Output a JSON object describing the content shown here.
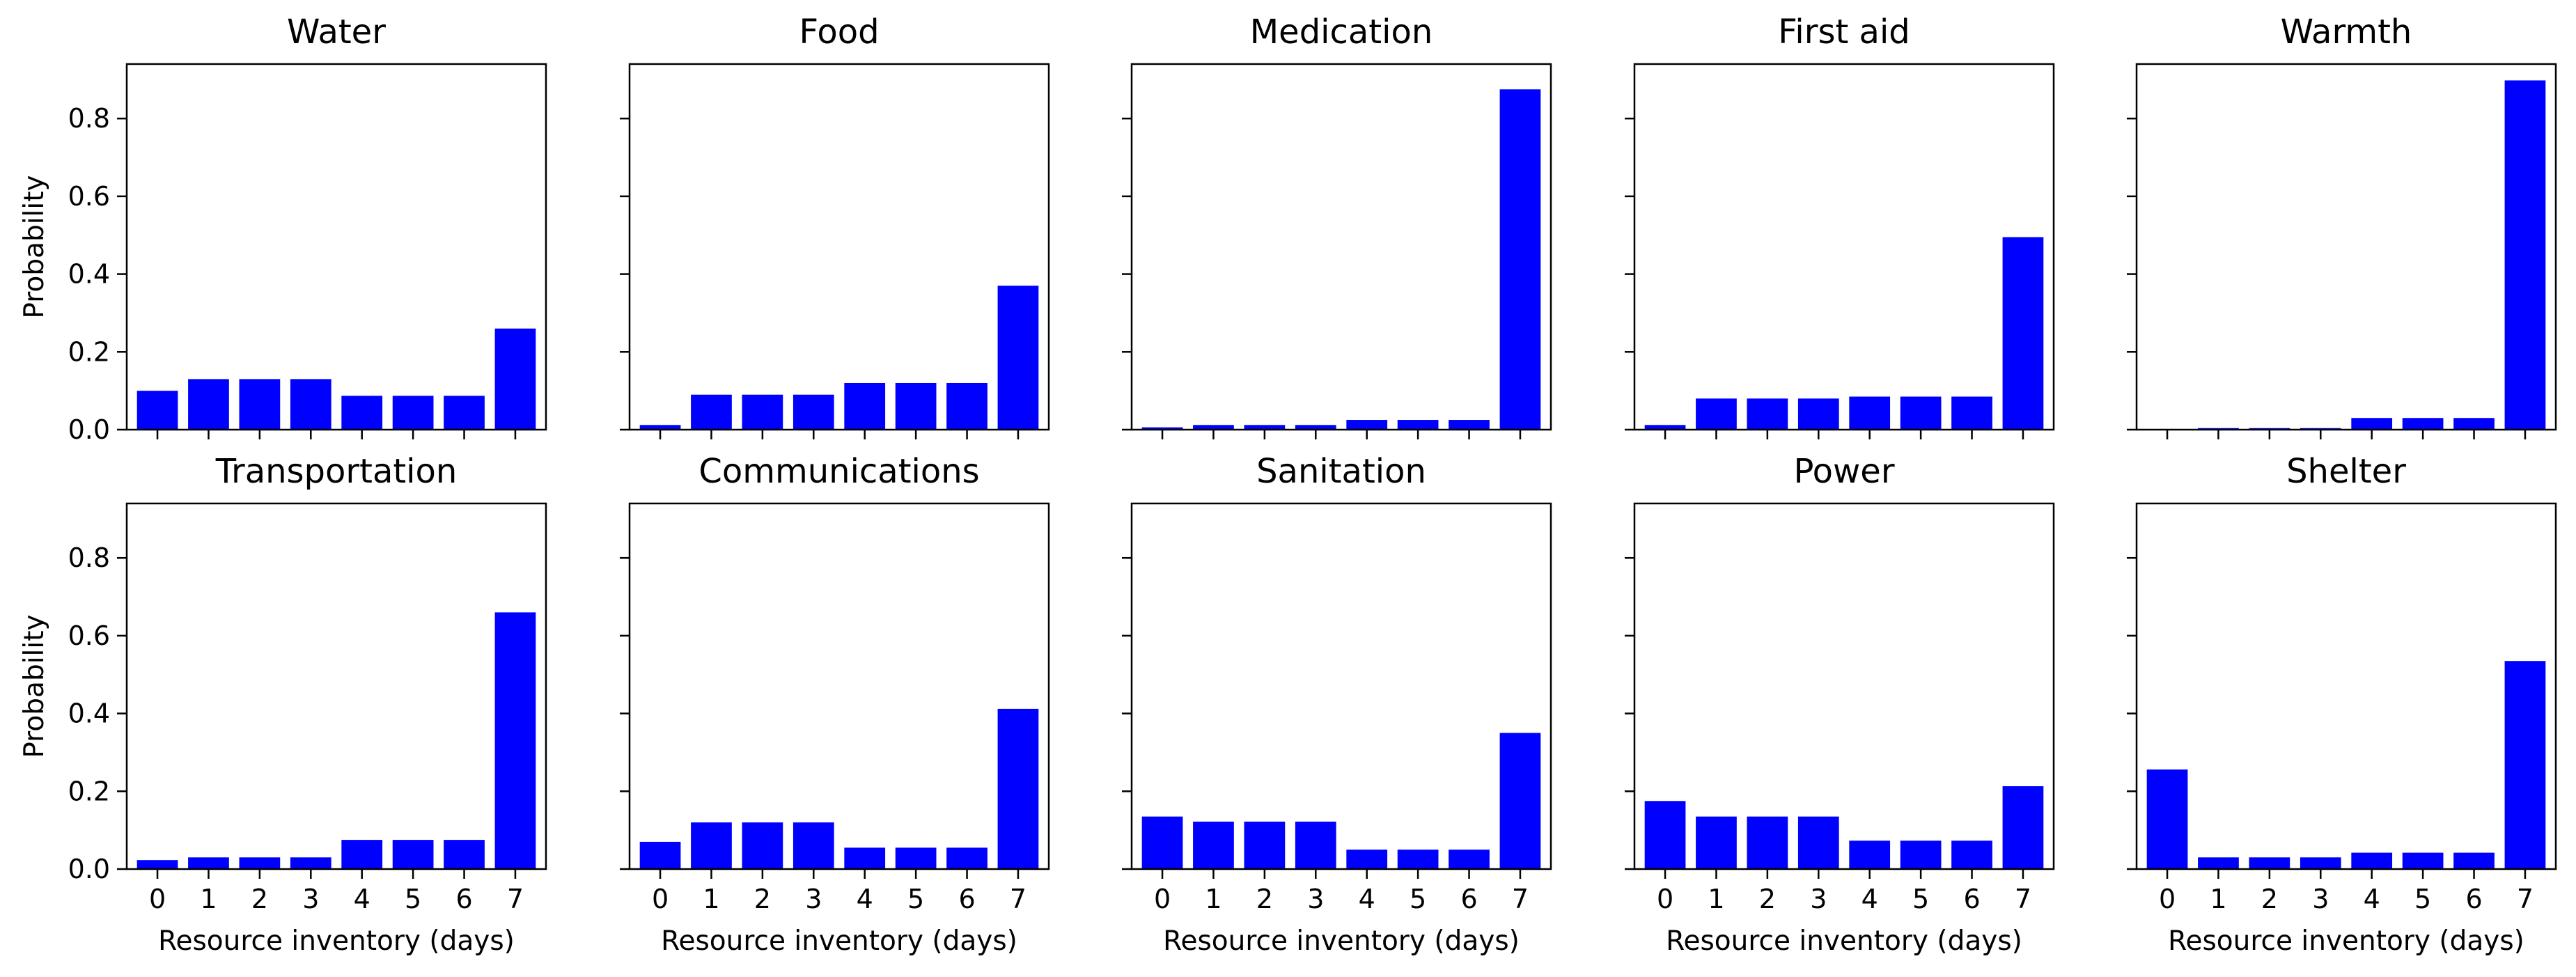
{
  "chart_data": {
    "type": "bar",
    "layout": {
      "rows": 2,
      "cols": 5,
      "sharex": true,
      "sharey": true
    },
    "bar_color": "#0000ff",
    "categories": [
      "0",
      "1",
      "2",
      "3",
      "4",
      "5",
      "6",
      "7"
    ],
    "xlabel": "Resource inventory (days)",
    "ylabel": "Probability",
    "ylim": [
      0,
      0.94
    ],
    "yticks": [
      0.0,
      0.2,
      0.4,
      0.6,
      0.8
    ],
    "ytick_labels": [
      "0.0",
      "0.2",
      "0.4",
      "0.6",
      "0.8"
    ],
    "grid": false,
    "legend": "none",
    "panels": [
      {
        "title": "Water",
        "values": [
          0.1,
          0.13,
          0.13,
          0.13,
          0.087,
          0.087,
          0.087,
          0.26
        ]
      },
      {
        "title": "Food",
        "values": [
          0.012,
          0.09,
          0.09,
          0.09,
          0.12,
          0.12,
          0.12,
          0.37
        ]
      },
      {
        "title": "Medication",
        "values": [
          0.006,
          0.012,
          0.012,
          0.012,
          0.025,
          0.025,
          0.025,
          0.875
        ]
      },
      {
        "title": "First aid",
        "values": [
          0.012,
          0.08,
          0.08,
          0.08,
          0.085,
          0.085,
          0.085,
          0.495
        ]
      },
      {
        "title": "Warmth",
        "values": [
          0.0,
          0.004,
          0.004,
          0.004,
          0.03,
          0.03,
          0.03,
          0.898
        ]
      },
      {
        "title": "Transportation",
        "values": [
          0.023,
          0.03,
          0.03,
          0.03,
          0.075,
          0.075,
          0.075,
          0.66
        ]
      },
      {
        "title": "Communications",
        "values": [
          0.07,
          0.12,
          0.12,
          0.12,
          0.055,
          0.055,
          0.055,
          0.412
        ]
      },
      {
        "title": "Sanitation",
        "values": [
          0.135,
          0.122,
          0.122,
          0.122,
          0.05,
          0.05,
          0.05,
          0.35
        ]
      },
      {
        "title": "Power",
        "values": [
          0.175,
          0.135,
          0.135,
          0.135,
          0.073,
          0.073,
          0.073,
          0.213
        ]
      },
      {
        "title": "Shelter",
        "values": [
          0.256,
          0.03,
          0.03,
          0.03,
          0.042,
          0.042,
          0.042,
          0.535
        ]
      }
    ]
  }
}
